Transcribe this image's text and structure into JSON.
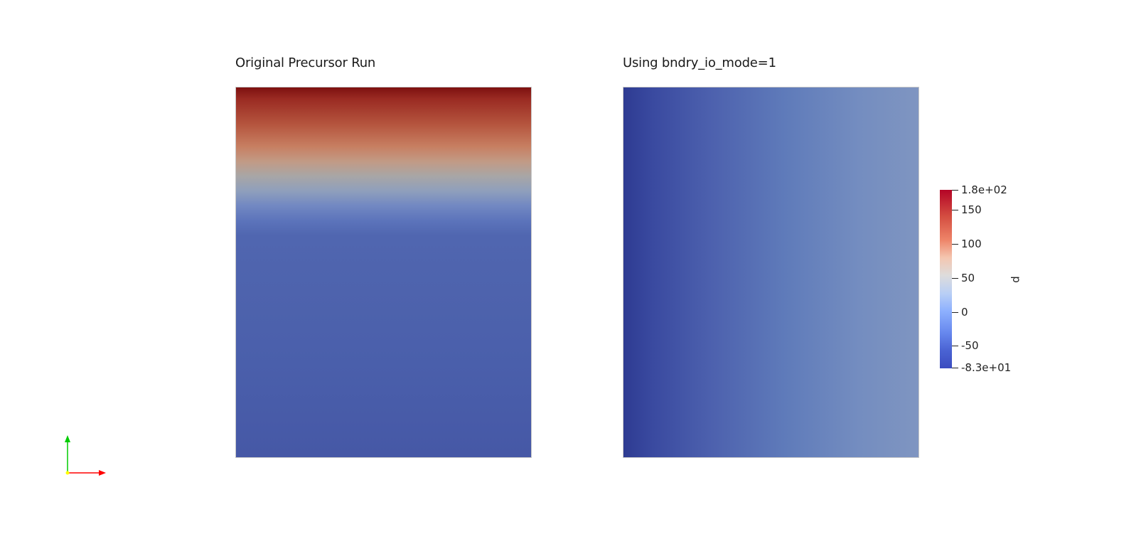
{
  "views": [
    {
      "title": "Original Precursor Run"
    },
    {
      "title": "Using bndry_io_mode=1"
    }
  ],
  "colorbar": {
    "title": "p",
    "range": [
      -83,
      180
    ],
    "tick_labels": [
      "1.8e+02",
      "150",
      "100",
      "50",
      "0",
      "-50",
      "-8.3e+01"
    ],
    "tick_values": [
      180,
      150,
      100,
      50,
      0,
      -50,
      -83
    ],
    "colormap": "Cool to Warm",
    "colors": {
      "max": "#b40426",
      "mid": "#dddcdc",
      "min": "#3b4cc0"
    }
  },
  "orientation_axes": {
    "x_color": "#ff0000",
    "y_color": "#00cc00",
    "origin_color": "#ffff00",
    "icons": [
      "x-axis-arrow-icon",
      "y-axis-arrow-icon"
    ]
  }
}
